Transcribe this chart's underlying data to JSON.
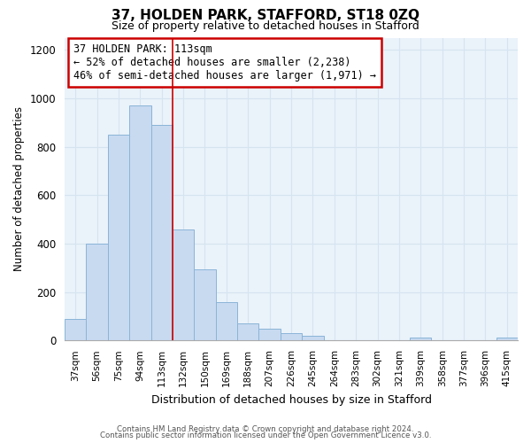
{
  "title": "37, HOLDEN PARK, STAFFORD, ST18 0ZQ",
  "subtitle": "Size of property relative to detached houses in Stafford",
  "xlabel": "Distribution of detached houses by size in Stafford",
  "ylabel": "Number of detached properties",
  "bar_color": "#c8daf0",
  "bar_edge_color": "#8ab4d8",
  "highlight_color": "#8ab4d8",
  "categories": [
    "37sqm",
    "56sqm",
    "75sqm",
    "94sqm",
    "113sqm",
    "132sqm",
    "150sqm",
    "169sqm",
    "188sqm",
    "207sqm",
    "226sqm",
    "245sqm",
    "264sqm",
    "283sqm",
    "302sqm",
    "321sqm",
    "339sqm",
    "358sqm",
    "377sqm",
    "396sqm",
    "415sqm"
  ],
  "values": [
    90,
    400,
    850,
    970,
    890,
    460,
    295,
    160,
    70,
    50,
    30,
    18,
    0,
    0,
    0,
    0,
    12,
    0,
    0,
    0,
    12
  ],
  "highlight_index": 4,
  "vline_color": "#cc0000",
  "annotation_title": "37 HOLDEN PARK: 113sqm",
  "annotation_line1": "← 52% of detached houses are smaller (2,238)",
  "annotation_line2": "46% of semi-detached houses are larger (1,971) →",
  "annotation_box_color": "#ffffff",
  "annotation_box_edge": "#cc0000",
  "ylim": [
    0,
    1250
  ],
  "yticks": [
    0,
    200,
    400,
    600,
    800,
    1000,
    1200
  ],
  "grid_color": "#d5e4f0",
  "background_color": "#eaf2fa",
  "footer1": "Contains HM Land Registry data © Crown copyright and database right 2024.",
  "footer2": "Contains public sector information licensed under the Open Government Licence v3.0."
}
